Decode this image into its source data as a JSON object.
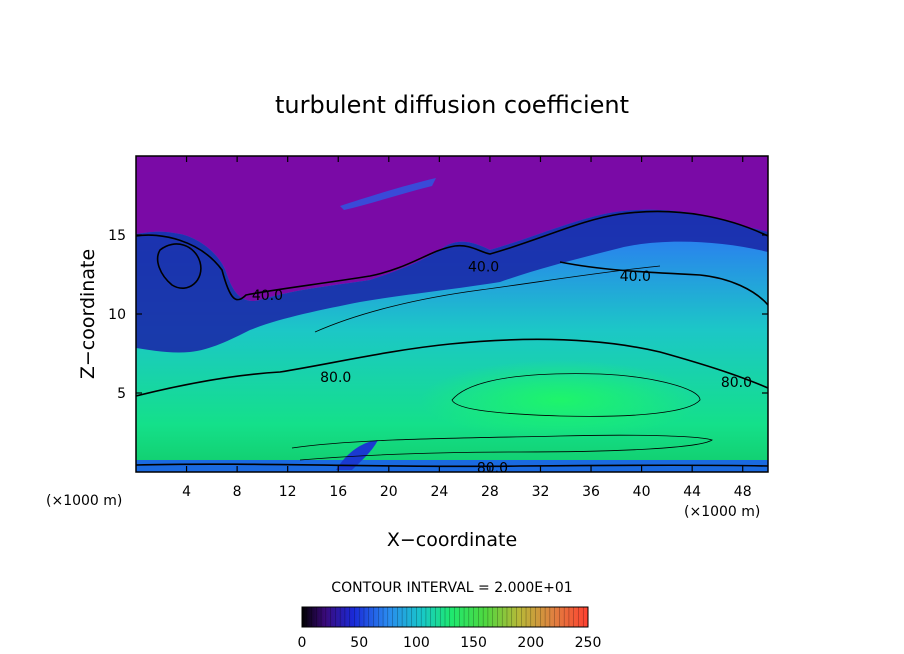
{
  "chart_data": {
    "type": "contour",
    "title": "turbulent diffusion coefficient",
    "xlabel": "X−coordinate",
    "ylabel": "Z−coordinate",
    "x_unit_left": "(×1000 m)",
    "x_unit_right": "(×1000 m)",
    "xlim": [
      0,
      50
    ],
    "ylim": [
      0,
      20
    ],
    "xticks": [
      4,
      8,
      12,
      16,
      20,
      24,
      28,
      32,
      36,
      40,
      44,
      48
    ],
    "yticks": [
      5,
      10,
      15
    ],
    "contour_labels": [
      {
        "text": "40.0",
        "x": 27.5,
        "y": 13.0
      },
      {
        "text": "40.0",
        "x": 39.5,
        "y": 12.4
      },
      {
        "text": "40.0",
        "x": 10.4,
        "y": 11.2
      },
      {
        "text": "80.0",
        "x": 15.8,
        "y": 6.0
      },
      {
        "text": "80.0",
        "x": 47.5,
        "y": 5.7
      },
      {
        "text": "80.0",
        "x": 28.2,
        "y": 0.3
      }
    ],
    "contour_interval_label": "CONTOUR INTERVAL = 2.000E+01",
    "colorbar": {
      "range": [
        0,
        250
      ],
      "ticks": [
        "0",
        "50",
        "100",
        "150",
        "200",
        "250"
      ]
    },
    "colors": {
      "upper": "#7a0aa6",
      "band_dark": "#1020a0",
      "band_blue": "#2c5af0",
      "mid_blue": "#2a9af2",
      "cyan": "#18c8c0",
      "green": "#1eeb78"
    }
  }
}
